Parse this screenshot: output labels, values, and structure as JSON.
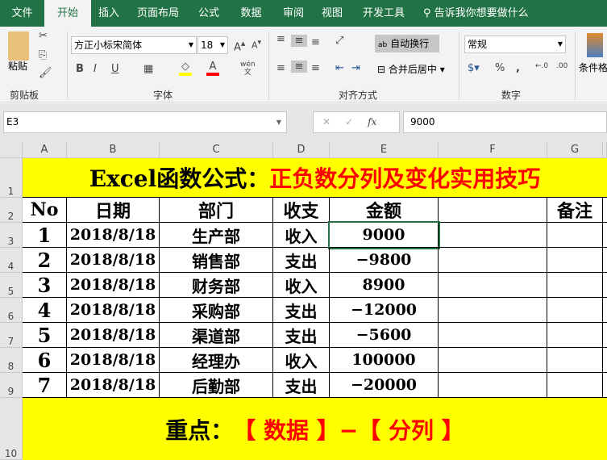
{
  "tabs": [
    "文件",
    "开始",
    "插入",
    "页面布局",
    "公式",
    "数据",
    "审阅",
    "视图",
    "开发工具"
  ],
  "active_tab": "开始",
  "tell_me": "告诉我你想要做什么",
  "ribbon": {
    "paste": "粘贴",
    "clipboard_group": "剪贴板",
    "font_name": "方正小标宋简体",
    "font_size": "18",
    "font_group": "字体",
    "bold": "B",
    "italic": "I",
    "underline": "U",
    "phonetic": "wén",
    "wrap_text": "自动换行",
    "merge_center": "合并后居中",
    "alignment_group": "对齐方式",
    "number_format": "常规",
    "percent": "%",
    "comma": ",",
    "number_group": "数字",
    "conditional_format": "条件格"
  },
  "fill_color": "#ffff00",
  "font_color": "#ff0000",
  "name_box": "E3",
  "formula_value": "9000",
  "columns": [
    "A",
    "B",
    "C",
    "D",
    "E",
    "F",
    "G"
  ],
  "rows": [
    "1",
    "2",
    "3",
    "4",
    "5",
    "6",
    "7",
    "8",
    "9",
    "10"
  ],
  "sheet": {
    "title_black": "Excel函数公式：",
    "title_red": "正负数分列及变化实用技巧",
    "headers": [
      "No",
      "日期",
      "部门",
      "收支",
      "金额",
      "",
      "备注"
    ],
    "data": [
      [
        "1",
        "2018/8/18",
        "生产部",
        "收入",
        "9000"
      ],
      [
        "2",
        "2018/8/18",
        "销售部",
        "支出",
        "−9800"
      ],
      [
        "3",
        "2018/8/18",
        "财务部",
        "收入",
        "8900"
      ],
      [
        "4",
        "2018/8/18",
        "采购部",
        "支出",
        "−12000"
      ],
      [
        "5",
        "2018/8/18",
        "渠道部",
        "支出",
        "−5600"
      ],
      [
        "6",
        "2018/8/18",
        "经理办",
        "收入",
        "100000"
      ],
      [
        "7",
        "2018/8/18",
        "后勤部",
        "支出",
        "−20000"
      ]
    ],
    "footer_black": "重点：",
    "footer_red": "【 数据 】−【 分列 】"
  },
  "colors": {
    "accent": "#217346",
    "highlight": "#ffff00",
    "red_text": "#ff0000"
  }
}
